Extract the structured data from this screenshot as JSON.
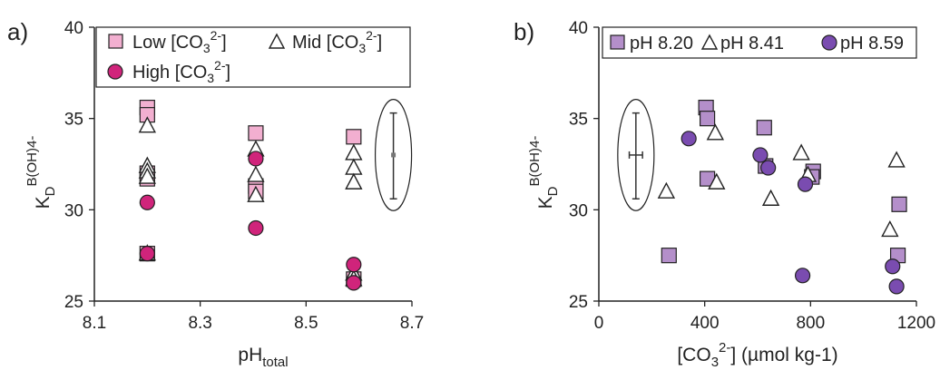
{
  "chart_data": [
    {
      "type": "scatter",
      "panel_label": "a)",
      "ylabel": {
        "main": "K",
        "sub": "D",
        "sup": "B(OH)4-"
      },
      "xlabel": {
        "main": "pH",
        "sub": "total"
      },
      "xlim": [
        8.1,
        8.7
      ],
      "ylim": [
        25,
        40
      ],
      "x_ticks": [
        "8.1",
        "8.3",
        "8.5",
        "8.7"
      ],
      "x_tick_values": [
        8.1,
        8.3,
        8.5,
        8.7
      ],
      "y_ticks": [
        "25",
        "30",
        "35",
        "40"
      ],
      "y_tick_values": [
        25,
        30,
        35,
        40
      ],
      "grid": false,
      "legend_position": "top",
      "series": [
        {
          "name": "Low [CO3 2-]",
          "legend": {
            "pre": "Low [CO",
            "sub": "3",
            "sup": "2-",
            "post": "]"
          },
          "marker": "square",
          "color": "#f2afd0",
          "points": [
            [
              8.2,
              35.6
            ],
            [
              8.2,
              35.2
            ],
            [
              8.2,
              32.0
            ],
            [
              8.2,
              31.7
            ],
            [
              8.2,
              27.6
            ],
            [
              8.405,
              34.2
            ],
            [
              8.405,
              31.3
            ],
            [
              8.405,
              31.0
            ],
            [
              8.59,
              34.0
            ],
            [
              8.59,
              26.2
            ]
          ]
        },
        {
          "name": "Mid [CO3 2-]",
          "legend": {
            "pre": "Mid [CO",
            "sub": "3",
            "sup": "2-",
            "post": "]"
          },
          "marker": "triangle",
          "color": "#ffffff",
          "points": [
            [
              8.2,
              34.6
            ],
            [
              8.2,
              32.4
            ],
            [
              8.2,
              32.1
            ],
            [
              8.2,
              31.8
            ],
            [
              8.2,
              27.6
            ],
            [
              8.405,
              33.3
            ],
            [
              8.405,
              31.9
            ],
            [
              8.405,
              30.8
            ],
            [
              8.59,
              33.1
            ],
            [
              8.59,
              32.3
            ],
            [
              8.59,
              31.5
            ],
            [
              8.59,
              26.5
            ],
            [
              8.59,
              26.2
            ]
          ]
        },
        {
          "name": "High [CO3 2-]",
          "legend": {
            "pre": "High [CO",
            "sub": "3",
            "sup": "2-",
            "post": "]"
          },
          "marker": "circle",
          "color": "#d0247b",
          "points": [
            [
              8.2,
              30.4
            ],
            [
              8.2,
              27.6
            ],
            [
              8.405,
              32.8
            ],
            [
              8.405,
              29.0
            ],
            [
              8.59,
              27.0
            ],
            [
              8.59,
              26.0
            ]
          ]
        }
      ],
      "error_bar": {
        "x": 8.665,
        "y": 33.0,
        "ylow": 30.6,
        "yhigh": 35.3,
        "enclosed": true
      }
    },
    {
      "type": "scatter",
      "panel_label": "b)",
      "ylabel": {
        "main": "K",
        "sub": "D",
        "sup": "B(OH)4-"
      },
      "xlabel": {
        "pre": "[CO",
        "sub": "3",
        "sup": "2-",
        "post": "] (µmol kg-1)"
      },
      "xlim": [
        0,
        1200
      ],
      "ylim": [
        25,
        40
      ],
      "x_ticks": [
        "0",
        "400",
        "800",
        "1200"
      ],
      "x_tick_values": [
        0,
        400,
        800,
        1200
      ],
      "y_ticks": [
        "25",
        "30",
        "35",
        "40"
      ],
      "y_tick_values": [
        25,
        30,
        35,
        40
      ],
      "grid": false,
      "legend_position": "top",
      "series": [
        {
          "name": "pH 8.20",
          "marker": "square",
          "color": "#b48fca",
          "points": [
            [
              405,
              35.6
            ],
            [
              410,
              35.0
            ],
            [
              410,
              31.7
            ],
            [
              265,
              27.5
            ],
            [
              625,
              34.5
            ],
            [
              630,
              32.4
            ],
            [
              810,
              32.1
            ],
            [
              805,
              31.8
            ],
            [
              1135,
              30.3
            ],
            [
              1130,
              27.5
            ]
          ]
        },
        {
          "name": "pH 8.41",
          "marker": "triangle",
          "color": "#ffffff",
          "points": [
            [
              255,
              31.0
            ],
            [
              440,
              34.2
            ],
            [
              445,
              31.5
            ],
            [
              650,
              30.6
            ],
            [
              765,
              33.1
            ],
            [
              790,
              31.9
            ],
            [
              1125,
              32.7
            ],
            [
              1100,
              28.9
            ]
          ]
        },
        {
          "name": "pH 8.59",
          "marker": "circle",
          "color": "#7a4cb0",
          "points": [
            [
              340,
              33.9
            ],
            [
              610,
              33.0
            ],
            [
              640,
              32.3
            ],
            [
              780,
              31.4
            ],
            [
              770,
              26.4
            ],
            [
              1110,
              26.9
            ],
            [
              1125,
              25.8
            ]
          ]
        }
      ],
      "error_bar": {
        "x": 140,
        "y": 33.0,
        "xlow": 115,
        "xhigh": 165,
        "ylow": 30.6,
        "yhigh": 35.3,
        "enclosed": true
      }
    }
  ],
  "style": {
    "axis_color": "#222222",
    "marker_stroke": "#222222",
    "errorbar_color": "#333333"
  }
}
